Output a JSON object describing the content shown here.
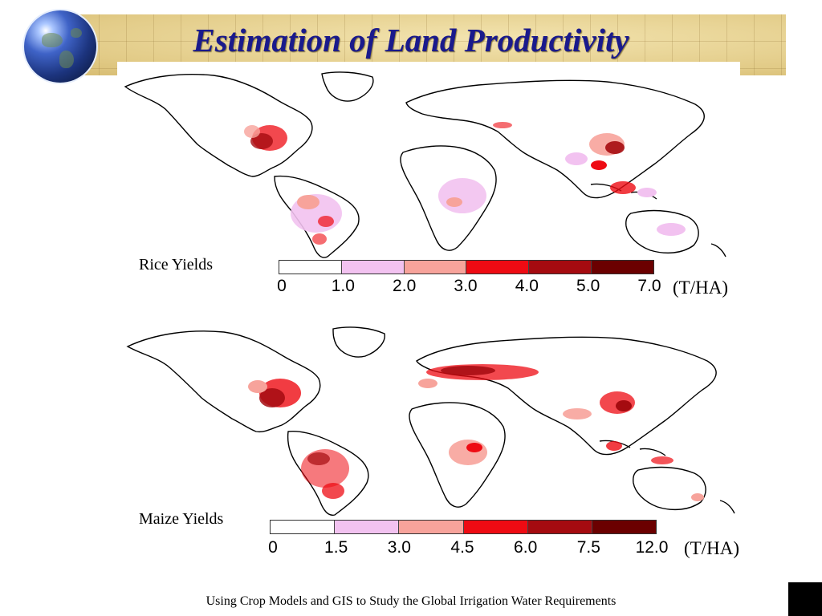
{
  "title": "Estimation of Land Productivity",
  "footer": "Using Crop Models and GIS to Study the Global Irrigation Water Requirements",
  "legend_colors": [
    "#ffffff",
    "#f2c2f0",
    "#f7a39b",
    "#ee0b13",
    "#a50b10",
    "#6b0000"
  ],
  "rice": {
    "label": "Rice Yields",
    "unit": "(T/HA)",
    "ticks": [
      "0",
      "1.0",
      "2.0",
      "3.0",
      "4.0",
      "5.0",
      "7.0"
    ]
  },
  "maize": {
    "label": "Maize Yields",
    "unit": "(T/HA)",
    "ticks": [
      "0",
      "1.5",
      "3.0",
      "4.5",
      "6.0",
      "7.5",
      "12.0"
    ]
  }
}
